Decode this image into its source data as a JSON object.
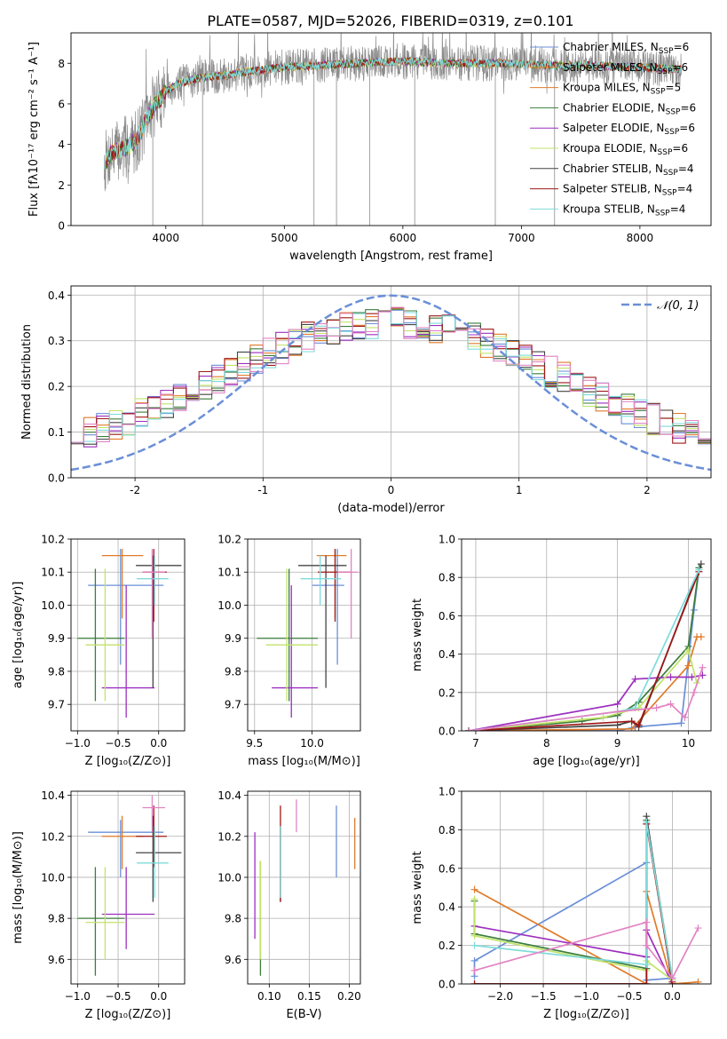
{
  "figure": {
    "title": "PLATE=0587, MJD=52026, FIBERID=0319, z=0.101"
  },
  "colors": {
    "c0": "#6a8fd8",
    "c1": "#e07b2a",
    "c2": "#3b7d3b",
    "c3": "#9c2fbf",
    "c4": "#c2e36a",
    "c5": "#444444",
    "c6": "#a01818",
    "c7": "#7fdbdb",
    "c8": "#e283c4",
    "gray": "#8c8c8c"
  },
  "chart_data": [
    {
      "id": "spectrum",
      "type": "line",
      "xlabel": "wavelength [Angstrom, rest frame]",
      "ylabel": "Flux [fλ10⁻¹⁷ erg cm⁻² s⁻¹ A⁻¹]",
      "xlim": [
        3200,
        8600
      ],
      "ylim": [
        0,
        9.5
      ],
      "xticks": [
        4000,
        5000,
        6000,
        7000,
        8000
      ],
      "yticks": [
        0,
        2,
        4,
        6,
        8
      ],
      "continuum": {
        "x": [
          3480,
          3550,
          3650,
          3750,
          3900,
          4000,
          4100,
          4300,
          4500,
          4700,
          5000,
          5300,
          5600,
          6000,
          6400,
          6800,
          7200,
          7600,
          8000,
          8350
        ],
        "y": [
          3.1,
          3.6,
          3.8,
          4.2,
          5.9,
          6.6,
          7.0,
          7.3,
          7.4,
          7.6,
          7.8,
          7.9,
          8.0,
          8.1,
          8.0,
          8.0,
          7.9,
          7.9,
          7.8,
          7.7
        ]
      },
      "legend": {
        "placement": "upper right",
        "entries": [
          {
            "name": "Chabrier MILES, N",
            "sub": "SSP",
            "n": "=6",
            "color": "c0"
          },
          {
            "name": "Salpeter MILES, N",
            "sub": "SSP",
            "n": "=6",
            "color": "c1"
          },
          {
            "name": "Kroupa MILES, N",
            "sub": "SSP",
            "n": "=5",
            "color": "c1"
          },
          {
            "name": "Chabrier ELODIE, N",
            "sub": "SSP",
            "n": "=6",
            "color": "c2"
          },
          {
            "name": "Salpeter ELODIE, N",
            "sub": "SSP",
            "n": "=6",
            "color": "c3"
          },
          {
            "name": "Kroupa ELODIE, N",
            "sub": "SSP",
            "n": "=6",
            "color": "c4"
          },
          {
            "name": "Chabrier STELIB, N",
            "sub": "SSP",
            "n": "=4",
            "color": "c5"
          },
          {
            "name": "Salpeter STELIB, N",
            "sub": "SSP",
            "n": "=4",
            "color": "c6"
          },
          {
            "name": "Kroupa STELIB, N",
            "sub": "SSP",
            "n": "=4",
            "color": "c7"
          }
        ]
      }
    },
    {
      "id": "residuals",
      "type": "line",
      "xlabel": "(data-model)/error",
      "ylabel": "Normed distribution",
      "xlim": [
        -2.5,
        2.5
      ],
      "ylim": [
        0,
        0.42
      ],
      "xticks": [
        -2,
        -1,
        0,
        1,
        2
      ],
      "yticks": [
        0.0,
        0.1,
        0.2,
        0.3,
        0.4
      ],
      "ytick_labels": [
        "0.0",
        "0.1",
        "0.2",
        "0.3",
        "0.4"
      ],
      "gaussian": {
        "mean": 0,
        "sigma": 1,
        "color": "c0"
      },
      "legend": {
        "placement": "upper right",
        "label": "𝒩(0, 1)"
      }
    },
    {
      "id": "age-vs-Z",
      "type": "scatter",
      "xlabel": "Z [log₁₀(Z/Z⊙)]",
      "ylabel": "age  [log₁₀(age/yr)]",
      "xlim": [
        -1.08,
        0.32
      ],
      "ylim": [
        9.62,
        10.2
      ],
      "xticks": [
        -1.0,
        -0.5,
        0.0
      ],
      "xtick_labels": [
        "−1.0",
        "−0.5",
        "0.0"
      ],
      "yticks": [
        9.7,
        9.8,
        9.9,
        10.0,
        10.1,
        10.2
      ],
      "ytick_labels": [
        "9.7",
        "9.8",
        "9.9",
        "10.0",
        "10.1",
        "10.2"
      ],
      "points": [
        {
          "x": -0.47,
          "y": 10.06,
          "xe": [
            -0.87,
            0.06
          ],
          "ye": [
            9.82,
            10.17
          ],
          "color": "c0"
        },
        {
          "x": -0.45,
          "y": 10.15,
          "xe": [
            -0.7,
            -0.19
          ],
          "ye": [
            9.96,
            10.17
          ],
          "color": "c1"
        },
        {
          "x": -0.78,
          "y": 9.9,
          "xe": [
            -1.0,
            -0.42
          ],
          "ye": [
            9.71,
            10.11
          ],
          "color": "c2"
        },
        {
          "x": -0.4,
          "y": 9.75,
          "xe": [
            -0.7,
            -0.05
          ],
          "ye": [
            9.66,
            10.06
          ],
          "color": "c3"
        },
        {
          "x": -0.66,
          "y": 9.88,
          "xe": [
            -0.9,
            -0.42
          ],
          "ye": [
            9.71,
            10.11
          ],
          "color": "c4"
        },
        {
          "x": -0.07,
          "y": 10.12,
          "xe": [
            -0.28,
            0.28
          ],
          "ye": [
            9.75,
            10.15
          ],
          "color": "c5"
        },
        {
          "x": -0.06,
          "y": 10.1,
          "xe": [
            -0.2,
            0.1
          ],
          "ye": [
            9.95,
            10.17
          ],
          "color": "c6"
        },
        {
          "x": -0.05,
          "y": 10.08,
          "xe": [
            -0.27,
            0.12
          ],
          "ye": [
            10.0,
            10.15
          ],
          "color": "c7"
        },
        {
          "x": -0.08,
          "y": 10.1,
          "xe": [
            -0.2,
            0.08
          ],
          "ye": [
            9.9,
            10.17
          ],
          "color": "c8"
        }
      ]
    },
    {
      "id": "age-vs-mass",
      "type": "scatter",
      "xlabel": "mass [log₁₀(M/M⊙)]",
      "ylabel": "",
      "xlim": [
        9.44,
        10.42
      ],
      "ylim": [
        9.62,
        10.2
      ],
      "xticks": [
        9.5,
        10.0
      ],
      "xtick_labels": [
        "9.5",
        "10.0"
      ],
      "yticks": [
        9.7,
        9.8,
        9.9,
        10.0,
        10.1,
        10.2
      ],
      "ytick_labels": [
        "9.7",
        "9.8",
        "9.9",
        "10.0",
        "10.1",
        "10.2"
      ],
      "points": [
        {
          "x": 10.22,
          "y": 10.06,
          "xe": [
            10.0,
            10.28
          ],
          "ye": [
            9.82,
            10.17
          ],
          "color": "c0"
        },
        {
          "x": 10.2,
          "y": 10.15,
          "xe": [
            10.04,
            10.3
          ],
          "ye": [
            9.96,
            10.17
          ],
          "color": "c1"
        },
        {
          "x": 9.8,
          "y": 9.9,
          "xe": [
            9.52,
            10.05
          ],
          "ye": [
            9.71,
            10.11
          ],
          "color": "c2"
        },
        {
          "x": 9.82,
          "y": 9.75,
          "xe": [
            9.65,
            10.05
          ],
          "ye": [
            9.66,
            10.06
          ],
          "color": "c3"
        },
        {
          "x": 9.78,
          "y": 9.88,
          "xe": [
            9.6,
            10.05
          ],
          "ye": [
            9.71,
            10.11
          ],
          "color": "c4"
        },
        {
          "x": 10.12,
          "y": 10.12,
          "xe": [
            9.88,
            10.3
          ],
          "ye": [
            9.75,
            10.15
          ],
          "color": "c5"
        },
        {
          "x": 10.2,
          "y": 10.1,
          "xe": [
            10.05,
            10.35
          ],
          "ye": [
            9.95,
            10.17
          ],
          "color": "c6"
        },
        {
          "x": 10.07,
          "y": 10.08,
          "xe": [
            9.9,
            10.25
          ],
          "ye": [
            10.0,
            10.15
          ],
          "color": "c7"
        },
        {
          "x": 10.34,
          "y": 10.1,
          "xe": [
            10.22,
            10.4
          ],
          "ye": [
            9.9,
            10.17
          ],
          "color": "c8"
        }
      ]
    },
    {
      "id": "mass-weight-vs-age",
      "type": "line",
      "xlabel": "age  [log₁₀(age/yr)]",
      "ylabel": "mass weight",
      "xlim": [
        6.8,
        10.32
      ],
      "ylim": [
        0,
        1.0
      ],
      "xticks": [
        7,
        8,
        9,
        10
      ],
      "yticks": [
        0.0,
        0.2,
        0.4,
        0.6,
        0.8,
        1.0
      ],
      "ytick_labels": [
        "0.0",
        "0.2",
        "0.4",
        "0.6",
        "0.8",
        "1.0"
      ],
      "series": [
        {
          "color": "c0",
          "x": [
            6.9,
            9.0,
            9.25,
            9.9,
            10.08,
            10.15
          ],
          "y": [
            0.0,
            0.0,
            0.02,
            0.04,
            0.63,
            0.84
          ]
        },
        {
          "color": "c1",
          "x": [
            6.9,
            9.2,
            10.0,
            10.12,
            10.18
          ],
          "y": [
            0.0,
            0.01,
            0.34,
            0.49,
            0.49
          ]
        },
        {
          "color": "c2",
          "x": [
            6.9,
            8.5,
            9.0,
            9.3,
            10.0,
            10.15
          ],
          "y": [
            0.0,
            0.05,
            0.08,
            0.15,
            0.44,
            0.85
          ]
        },
        {
          "color": "c3",
          "x": [
            6.9,
            9.0,
            9.25,
            9.75,
            10.05,
            10.2
          ],
          "y": [
            0.0,
            0.14,
            0.27,
            0.28,
            0.28,
            0.29
          ]
        },
        {
          "color": "c4",
          "x": [
            6.9,
            8.8,
            9.3,
            10.0,
            10.12
          ],
          "y": [
            0.0,
            0.07,
            0.12,
            0.42,
            0.25
          ]
        },
        {
          "color": "c5",
          "x": [
            6.9,
            9.0,
            9.2,
            9.3,
            10.18
          ],
          "y": [
            0.0,
            0.03,
            0.05,
            0.02,
            0.87
          ]
        },
        {
          "color": "c6",
          "x": [
            6.9,
            9.2,
            9.3,
            10.15
          ],
          "y": [
            0.0,
            0.05,
            0.03,
            0.83
          ]
        },
        {
          "color": "c7",
          "x": [
            6.9,
            9.0,
            9.25,
            10.15
          ],
          "y": [
            0.0,
            0.1,
            0.12,
            0.84
          ]
        },
        {
          "color": "c8",
          "x": [
            6.9,
            9.0,
            9.55,
            9.75,
            9.95,
            10.08,
            10.2
          ],
          "y": [
            0.0,
            0.1,
            0.12,
            0.14,
            0.07,
            0.2,
            0.33
          ]
        }
      ]
    },
    {
      "id": "mass-vs-Z",
      "type": "scatter",
      "xlabel": "Z [log₁₀(Z/Z⊙)]",
      "ylabel": "mass [log₁₀(M/M⊙)]",
      "xlim": [
        -1.08,
        0.32
      ],
      "ylim": [
        9.48,
        10.42
      ],
      "xticks": [
        -1.0,
        -0.5,
        0.0
      ],
      "xtick_labels": [
        "−1.0",
        "−0.5",
        "0.0"
      ],
      "yticks": [
        9.6,
        9.8,
        10.0,
        10.2,
        10.4
      ],
      "ytick_labels": [
        "9.6",
        "9.8",
        "10.0",
        "10.2",
        "10.4"
      ],
      "points": [
        {
          "x": -0.47,
          "y": 10.22,
          "xe": [
            -0.87,
            0.06
          ],
          "ye": [
            10.0,
            10.28
          ],
          "color": "c0"
        },
        {
          "x": -0.45,
          "y": 10.2,
          "xe": [
            -0.7,
            -0.19
          ],
          "ye": [
            10.04,
            10.3
          ],
          "color": "c1"
        },
        {
          "x": -0.78,
          "y": 9.8,
          "xe": [
            -1.0,
            -0.42
          ],
          "ye": [
            9.52,
            10.05
          ],
          "color": "c2"
        },
        {
          "x": -0.4,
          "y": 9.82,
          "xe": [
            -0.7,
            -0.05
          ],
          "ye": [
            9.65,
            10.05
          ],
          "color": "c3"
        },
        {
          "x": -0.66,
          "y": 9.78,
          "xe": [
            -0.9,
            -0.42
          ],
          "ye": [
            9.6,
            10.05
          ],
          "color": "c4"
        },
        {
          "x": -0.07,
          "y": 10.12,
          "xe": [
            -0.28,
            0.28
          ],
          "ye": [
            9.88,
            10.3
          ],
          "color": "c5"
        },
        {
          "x": -0.06,
          "y": 10.2,
          "xe": [
            -0.28,
            0.1
          ],
          "ye": [
            10.05,
            10.35
          ],
          "color": "c6"
        },
        {
          "x": -0.05,
          "y": 10.07,
          "xe": [
            -0.27,
            0.12
          ],
          "ye": [
            9.9,
            10.25
          ],
          "color": "c7"
        },
        {
          "x": -0.08,
          "y": 10.34,
          "xe": [
            -0.2,
            0.08
          ],
          "ye": [
            10.22,
            10.4
          ],
          "color": "c8"
        }
      ]
    },
    {
      "id": "mass-vs-ebv",
      "type": "scatter",
      "xlabel": "E(B-V)",
      "ylabel": "",
      "xlim": [
        0.073,
        0.214
      ],
      "ylim": [
        9.48,
        10.42
      ],
      "xticks": [
        0.1,
        0.15,
        0.2
      ],
      "xtick_labels": [
        "0.10",
        "0.15",
        "0.20"
      ],
      "yticks": [
        9.6,
        9.8,
        10.0,
        10.2,
        10.4
      ],
      "ytick_labels": [
        "9.6",
        "9.8",
        "10.0",
        "10.2",
        "10.4"
      ],
      "points": [
        {
          "x": 0.184,
          "y": 10.22,
          "ye": [
            10.0,
            10.35
          ],
          "color": "c0"
        },
        {
          "x": 0.207,
          "y": 10.2,
          "ye": [
            10.04,
            10.29
          ],
          "color": "c1"
        },
        {
          "x": 0.089,
          "y": 9.8,
          "ye": [
            9.52,
            10.08
          ],
          "color": "c2"
        },
        {
          "x": 0.082,
          "y": 9.82,
          "ye": [
            9.7,
            10.22
          ],
          "color": "c3"
        },
        {
          "x": 0.089,
          "y": 9.78,
          "ye": [
            9.6,
            10.08
          ],
          "color": "c4"
        },
        {
          "x": 0.114,
          "y": 10.12,
          "ye": [
            9.88,
            10.25
          ],
          "color": "c5"
        },
        {
          "x": 0.114,
          "y": 10.2,
          "ye": [
            9.88,
            10.35
          ],
          "color": "c6"
        },
        {
          "x": 0.114,
          "y": 10.07,
          "ye": [
            9.9,
            10.25
          ],
          "color": "c7"
        },
        {
          "x": 0.134,
          "y": 10.34,
          "ye": [
            10.22,
            10.38
          ],
          "color": "c8"
        }
      ]
    },
    {
      "id": "mass-weight-vs-Z",
      "type": "line",
      "xlabel": "Z [log₁₀(Z/Z⊙)]",
      "ylabel": "mass weight",
      "xlim": [
        -2.45,
        0.45
      ],
      "ylim": [
        0,
        1.0
      ],
      "xticks": [
        -2.0,
        -1.5,
        -1.0,
        -0.5,
        0.0
      ],
      "xtick_labels": [
        "−2.0",
        "−1.5",
        "−1.0",
        "−0.5",
        "0.0"
      ],
      "yticks": [
        0.0,
        0.2,
        0.4,
        0.6,
        0.8,
        1.0
      ],
      "ytick_labels": [
        "0.0",
        "0.2",
        "0.4",
        "0.6",
        "0.8",
        "1.0"
      ],
      "series": [
        {
          "color": "c0",
          "x": [
            -2.3,
            -2.3,
            -0.3,
            -0.3,
            0.0
          ],
          "y": [
            0.04,
            0.12,
            0.63,
            0.02,
            0.03
          ]
        },
        {
          "color": "c1",
          "x": [
            -2.3,
            -0.3,
            -0.3,
            0.0,
            0.3
          ],
          "y": [
            0.49,
            0.0,
            0.48,
            0.0,
            0.01
          ]
        },
        {
          "color": "c2",
          "x": [
            -2.3,
            -2.3,
            -0.3,
            -0.3,
            0.0
          ],
          "y": [
            0.43,
            0.26,
            0.08,
            0.85,
            0.03
          ]
        },
        {
          "color": "c3",
          "x": [
            -2.3,
            -0.3,
            -0.3,
            0.0
          ],
          "y": [
            0.3,
            0.14,
            0.28,
            0.0
          ]
        },
        {
          "color": "c4",
          "x": [
            -2.3,
            -2.3,
            -0.3,
            -0.3,
            0.0
          ],
          "y": [
            0.44,
            0.25,
            0.07,
            0.12,
            0.02
          ]
        },
        {
          "color": "c5",
          "x": [
            -2.3,
            -0.3,
            -0.3,
            0.0
          ],
          "y": [
            0.0,
            0.0,
            0.87,
            0.0
          ]
        },
        {
          "color": "c6",
          "x": [
            -2.3,
            -0.3,
            -0.3,
            0.0
          ],
          "y": [
            0.0,
            0.0,
            0.83,
            0.01
          ]
        },
        {
          "color": "c7",
          "x": [
            -2.3,
            -0.3,
            -0.3,
            0.0
          ],
          "y": [
            0.2,
            0.1,
            0.84,
            0.03
          ]
        },
        {
          "color": "c8",
          "x": [
            -2.3,
            -0.3,
            -0.3,
            0.0,
            0.3
          ],
          "y": [
            0.07,
            0.32,
            0.2,
            0.03,
            0.29
          ]
        }
      ]
    }
  ]
}
